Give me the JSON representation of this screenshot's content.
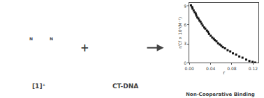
{
  "chart_data": {
    "type": "scatter",
    "x": [
      0.003,
      0.005,
      0.006,
      0.008,
      0.01,
      0.012,
      0.013,
      0.015,
      0.017,
      0.019,
      0.021,
      0.023,
      0.025,
      0.028,
      0.03,
      0.033,
      0.035,
      0.037,
      0.04,
      0.043,
      0.046,
      0.048,
      0.051,
      0.054,
      0.057,
      0.06,
      0.063,
      0.067,
      0.072,
      0.077,
      0.082,
      0.088,
      0.094,
      0.1,
      0.107,
      0.113,
      0.119,
      0.124
    ],
    "values": [
      9.1,
      8.8,
      8.6,
      8.3,
      8.0,
      7.8,
      7.5,
      7.2,
      7.0,
      6.7,
      6.5,
      6.2,
      5.9,
      5.6,
      5.4,
      5.1,
      4.9,
      4.6,
      4.3,
      4.0,
      3.8,
      3.6,
      3.4,
      3.1,
      2.9,
      2.7,
      2.5,
      2.3,
      2.0,
      1.8,
      1.5,
      1.3,
      1.0,
      0.8,
      0.5,
      0.3,
      0.15,
      0.05
    ],
    "color": "#111111",
    "marker": "square",
    "x_label": "r",
    "y_label": "r/Cf × 10⁴(M⁻¹)",
    "xlim": [
      0.0,
      0.13
    ],
    "ylim": [
      0.0,
      9.5
    ],
    "xticks": [
      {
        "value": 0.0,
        "label": "0.00"
      },
      {
        "value": 0.04,
        "label": "0.04"
      },
      {
        "value": 0.08,
        "label": "0.08"
      },
      {
        "value": 0.12,
        "label": "0.12"
      }
    ],
    "yticks": [
      0,
      3,
      6,
      9
    ],
    "grid": false,
    "annotations": [
      "[1]⁺",
      "+",
      "CT-DNA",
      "Non-Cooperative Binding",
      "N",
      "N"
    ]
  }
}
